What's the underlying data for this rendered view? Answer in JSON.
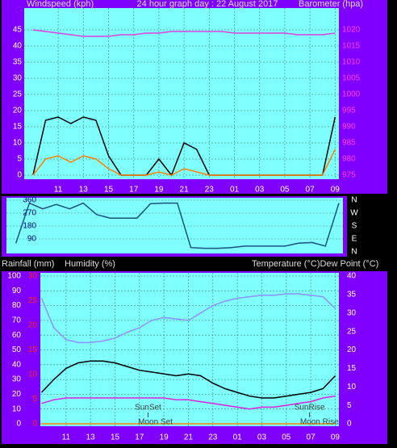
{
  "chart_data": [
    {
      "type": "line",
      "title": "24 hour graph day : 22 August 2017",
      "y_label": "Windspeed (kph)",
      "y2_label": "Barometer (hpa)",
      "x": [
        9,
        10,
        11,
        12,
        13,
        14,
        15,
        16,
        17,
        18,
        19,
        20,
        21,
        22,
        23,
        24,
        25,
        26,
        27,
        28,
        29,
        30,
        31,
        32,
        33
      ],
      "xlim": [
        8.3,
        33.3
      ],
      "xticks": [
        11,
        13,
        15,
        17,
        19,
        21,
        23,
        {
          "value": 25,
          "label": "01"
        },
        {
          "value": 27,
          "label": "03"
        },
        {
          "value": 29,
          "label": "05"
        },
        {
          "value": 31,
          "label": "07"
        },
        {
          "value": 33,
          "label": "09"
        }
      ],
      "ylim": [
        0,
        50
      ],
      "yticks": [
        0,
        5,
        10,
        15,
        20,
        25,
        30,
        35,
        40,
        45
      ],
      "ytick_color": "#ffffff",
      "y2lim": [
        975,
        1025
      ],
      "y2ticks": [
        975,
        980,
        985,
        990,
        995,
        1000,
        1005,
        1010,
        1015,
        1020
      ],
      "y2tick_color": "#ff40ff",
      "grid": true,
      "series": [
        {
          "color": "#000000",
          "axis": "y",
          "values": [
            0,
            17,
            18,
            16,
            18,
            17,
            6,
            0,
            0,
            0,
            5,
            0,
            10,
            8,
            0,
            0,
            0,
            0,
            0,
            0,
            0,
            0,
            0,
            0,
            18
          ]
        },
        {
          "color": "#ff8000",
          "axis": "y",
          "values": [
            0,
            5,
            6,
            4,
            6,
            5,
            2,
            0,
            0,
            0,
            1,
            0,
            2,
            1,
            0,
            0,
            0,
            0,
            0,
            0,
            0,
            0,
            0,
            0,
            8
          ]
        },
        {
          "color": "#e040e0",
          "axis": "y2",
          "values": [
            1020,
            1019.5,
            1019,
            1018.5,
            1018,
            1018,
            1018,
            1018.5,
            1018.5,
            1019,
            1019,
            1019.5,
            1019.5,
            1019.5,
            1019.5,
            1019.5,
            1019,
            1019,
            1019,
            1019,
            1019,
            1018.5,
            1018.5,
            1018.5,
            1019
          ]
        }
      ]
    },
    {
      "type": "line",
      "x": [
        9,
        10,
        11,
        12,
        13,
        14,
        15,
        16,
        17,
        18,
        19,
        20,
        21,
        22,
        23,
        24,
        25,
        26,
        27,
        28,
        29,
        30,
        31,
        32,
        33
      ],
      "xlim": [
        8.3,
        33.3
      ],
      "ylim": [
        0,
        360
      ],
      "yticks": [
        90,
        180,
        270,
        360
      ],
      "ytick_color": "#000080",
      "y2lim": [
        0,
        360
      ],
      "y2ticks": [
        {
          "value": 360,
          "label": "N"
        },
        {
          "value": 270,
          "label": "W"
        },
        {
          "value": 180,
          "label": "S"
        },
        {
          "value": 90,
          "label": "E"
        },
        {
          "value": 0,
          "label": "N"
        }
      ],
      "y2tick_color": "#ffffff",
      "grid": true,
      "series": [
        {
          "color": "#1a5080",
          "axis": "y",
          "values": [
            60,
            340,
            300,
            330,
            300,
            340,
            260,
            235,
            235,
            235,
            335,
            340,
            340,
            30,
            25,
            25,
            30,
            40,
            40,
            40,
            40,
            60,
            65,
            40,
            340
          ]
        }
      ]
    },
    {
      "type": "line",
      "y3_label": "Rainfall (mm)",
      "y_label": "Humidity (%)",
      "y2_label": "Temperature (°C)Dew Point (°C)",
      "x": [
        9,
        10,
        11,
        12,
        13,
        14,
        15,
        16,
        17,
        18,
        19,
        20,
        21,
        22,
        23,
        24,
        25,
        26,
        27,
        28,
        29,
        30,
        31,
        32,
        33
      ],
      "xlim": [
        8.9,
        33.3
      ],
      "xticks": [
        11,
        13,
        15,
        17,
        19,
        21,
        23,
        {
          "value": 25,
          "label": "01"
        },
        {
          "value": 27,
          "label": "03"
        },
        {
          "value": 29,
          "label": "05"
        },
        {
          "value": 31,
          "label": "07"
        },
        {
          "value": 33,
          "label": "09"
        }
      ],
      "ylim": [
        0,
        100
      ],
      "yticks": [
        0,
        10,
        20,
        30,
        40,
        50,
        60,
        70,
        80,
        90,
        100
      ],
      "ytick_color": "#ffffff",
      "y3lim": [
        0,
        30
      ],
      "y3ticks": [
        0,
        5,
        10,
        15,
        20,
        25,
        30
      ],
      "y3tick_color": "#ff2020",
      "y2lim": [
        0,
        40
      ],
      "y2ticks": [
        0,
        5,
        10,
        15,
        20,
        25,
        30,
        35,
        40
      ],
      "y2tick_color": "#ffffff",
      "grid": true,
      "series": [
        {
          "color": "#9090ff",
          "axis": "y",
          "values": [
            85,
            65,
            57,
            55,
            55,
            56,
            58,
            62,
            65,
            70,
            72,
            71,
            70,
            75,
            80,
            83,
            85,
            86,
            87,
            87,
            88,
            88,
            87,
            86,
            78
          ]
        },
        {
          "color": "#ff8000",
          "axis": "y3",
          "values": [
            0,
            0,
            0,
            0,
            0,
            0,
            0,
            0,
            0,
            0,
            0,
            0,
            0,
            0,
            0,
            0,
            0,
            0,
            0,
            0,
            0,
            0,
            0,
            0,
            0
          ]
        },
        {
          "color": "#000000",
          "axis": "y2",
          "values": [
            8.5,
            12,
            15,
            16.5,
            17,
            17,
            16.5,
            15.5,
            14.5,
            14,
            13.5,
            13,
            13.5,
            13,
            11,
            9.5,
            8.5,
            7.5,
            7,
            7,
            7.5,
            8,
            8.5,
            9.5,
            13
          ]
        },
        {
          "color": "#e020e0",
          "axis": "y2",
          "values": [
            5.5,
            6.5,
            7,
            7,
            7,
            7,
            7,
            7,
            7,
            7,
            7,
            6.5,
            6.5,
            6,
            5.5,
            5,
            4.5,
            4,
            4.5,
            4.5,
            5,
            5.5,
            6,
            7,
            7.5
          ]
        }
      ],
      "annotations": [
        {
          "text": "SunSet",
          "x": 17.7
        },
        {
          "text": "Moon Set",
          "x": 18.3
        },
        {
          "text": "SunRise",
          "x": 30.9
        },
        {
          "text": "Moon Rise",
          "x": 31.7
        }
      ]
    }
  ]
}
